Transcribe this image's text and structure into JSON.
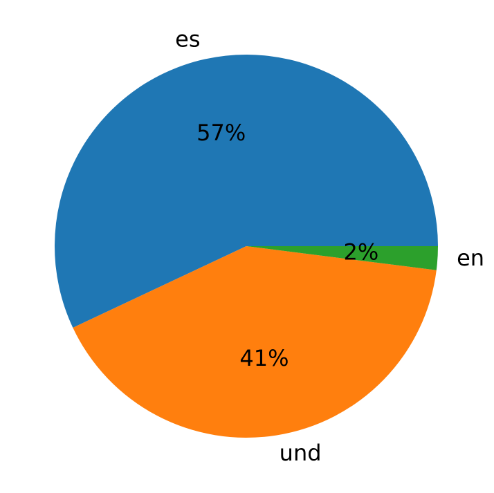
{
  "chart_data": {
    "type": "pie",
    "categories": [
      "es",
      "und",
      "en"
    ],
    "values": [
      57,
      41,
      2
    ],
    "value_labels": [
      "57%",
      "41%",
      "2%"
    ],
    "colors": [
      "#1f77b4",
      "#ff7f0e",
      "#2ca02c"
    ]
  }
}
